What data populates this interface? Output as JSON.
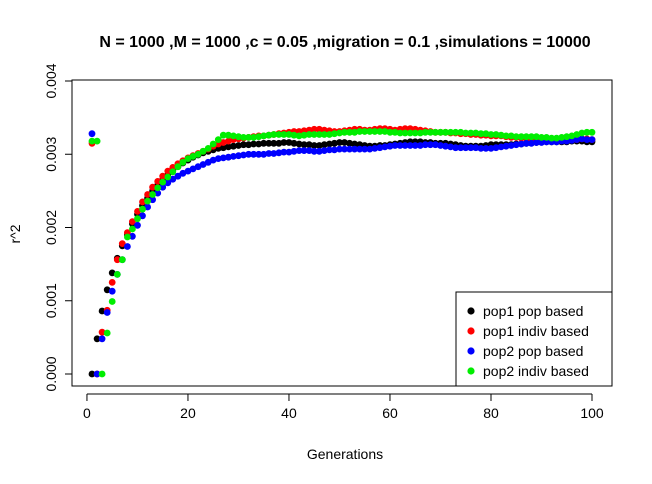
{
  "chart_data": {
    "type": "scatter",
    "title": "N = 1000 ,M = 1000 ,c = 0.05 ,migration = 0.1 ,simulations = 10000",
    "xlabel": "Generations",
    "ylabel": "r^2",
    "xlim": [
      1,
      100
    ],
    "ylim": [
      0,
      0.004
    ],
    "xticks": [
      0,
      20,
      40,
      60,
      80,
      100
    ],
    "xtick_labels": [
      "0",
      "20",
      "40",
      "60",
      "80",
      "100"
    ],
    "yticks": [
      0,
      0.001,
      0.002,
      0.003,
      0.004
    ],
    "ytick_labels": [
      "0.000",
      "0.001",
      "0.002",
      "0.003",
      "0.004"
    ],
    "grid": false,
    "legend_position": "bottom-right",
    "series": [
      {
        "name": "pop1 pop based",
        "color": "#000000",
        "x": [
          1,
          2,
          3,
          4,
          5,
          6,
          7,
          8,
          9,
          10,
          11,
          12,
          13,
          14,
          15,
          16,
          17,
          18,
          19,
          20,
          21,
          22,
          23,
          24,
          25,
          26,
          27,
          28,
          29,
          30,
          31,
          32,
          33,
          34,
          35,
          36,
          37,
          38,
          39,
          40,
          41,
          42,
          43,
          44,
          45,
          46,
          47,
          48,
          49,
          50,
          51,
          52,
          53,
          54,
          55,
          56,
          57,
          58,
          59,
          60,
          61,
          62,
          63,
          64,
          65,
          66,
          67,
          68,
          69,
          70,
          71,
          72,
          73,
          74,
          75,
          76,
          77,
          78,
          79,
          80,
          81,
          82,
          83,
          84,
          85,
          86,
          87,
          88,
          89,
          90,
          91,
          92,
          93,
          94,
          95,
          96,
          97,
          98,
          99,
          100
        ],
        "y": [
          0.0,
          0.00048,
          0.00086,
          0.00115,
          0.00138,
          0.00158,
          0.00175,
          0.0019,
          0.00205,
          0.00218,
          0.0023,
          0.0024,
          0.0025,
          0.00258,
          0.00265,
          0.00272,
          0.00278,
          0.00283,
          0.00288,
          0.00292,
          0.00296,
          0.00299,
          0.00302,
          0.00304,
          0.00306,
          0.00308,
          0.00309,
          0.0031,
          0.00311,
          0.00312,
          0.00313,
          0.00313,
          0.00314,
          0.00314,
          0.00315,
          0.00315,
          0.00315,
          0.00315,
          0.00316,
          0.00316,
          0.00315,
          0.00314,
          0.00313,
          0.00313,
          0.00312,
          0.00312,
          0.00313,
          0.00314,
          0.00315,
          0.00316,
          0.00316,
          0.00315,
          0.00314,
          0.00313,
          0.00312,
          0.00311,
          0.00311,
          0.00312,
          0.00312,
          0.00313,
          0.00314,
          0.00315,
          0.00316,
          0.00317,
          0.00317,
          0.00317,
          0.00316,
          0.00316,
          0.00315,
          0.00315,
          0.00315,
          0.00314,
          0.00313,
          0.00312,
          0.00311,
          0.00311,
          0.00311,
          0.00311,
          0.00312,
          0.00313,
          0.00313,
          0.00313,
          0.00313,
          0.00313,
          0.00314,
          0.00314,
          0.00315,
          0.00316,
          0.00316,
          0.00317,
          0.00317,
          0.00317,
          0.00317,
          0.00317,
          0.00317,
          0.00318,
          0.00318,
          0.00318,
          0.00317,
          0.00317
        ]
      },
      {
        "name": "pop1 indiv based",
        "color": "#ff0000",
        "x": [
          1,
          2,
          3,
          4,
          5,
          6,
          7,
          8,
          9,
          10,
          11,
          12,
          13,
          14,
          15,
          16,
          17,
          18,
          19,
          20,
          21,
          22,
          23,
          24,
          25,
          26,
          27,
          28,
          29,
          30,
          31,
          32,
          33,
          34,
          35,
          36,
          37,
          38,
          39,
          40,
          41,
          42,
          43,
          44,
          45,
          46,
          47,
          48,
          49,
          50,
          51,
          52,
          53,
          54,
          55,
          56,
          57,
          58,
          59,
          60,
          61,
          62,
          63,
          64,
          65,
          66,
          67,
          68,
          69,
          70,
          71,
          72,
          73,
          74,
          75,
          76,
          77,
          78,
          79,
          80,
          81,
          82,
          83,
          84,
          85,
          86,
          87,
          88,
          89,
          90,
          91,
          92,
          93,
          94,
          95,
          96,
          97,
          98,
          99,
          100
        ],
        "y": [
          0.00315,
          0.0,
          0.00057,
          0.00087,
          0.00125,
          0.00156,
          0.00178,
          0.00193,
          0.00208,
          0.00222,
          0.00235,
          0.00245,
          0.00255,
          0.00263,
          0.0027,
          0.00277,
          0.00282,
          0.00287,
          0.00291,
          0.00295,
          0.00298,
          0.00301,
          0.00304,
          0.00307,
          0.00311,
          0.00314,
          0.00316,
          0.00318,
          0.0032,
          0.00321,
          0.00322,
          0.00323,
          0.00324,
          0.00325,
          0.00325,
          0.00326,
          0.00327,
          0.00328,
          0.00329,
          0.0033,
          0.00331,
          0.00331,
          0.00332,
          0.00333,
          0.00334,
          0.00334,
          0.00333,
          0.00332,
          0.00331,
          0.00331,
          0.00332,
          0.00333,
          0.00334,
          0.00334,
          0.00333,
          0.00333,
          0.00334,
          0.00335,
          0.00335,
          0.00334,
          0.00333,
          0.00334,
          0.00335,
          0.00335,
          0.00334,
          0.00333,
          0.00332,
          0.00331,
          0.0033,
          0.0033,
          0.0033,
          0.00329,
          0.00329,
          0.00328,
          0.00328,
          0.00327,
          0.00327,
          0.00326,
          0.00326,
          0.00325,
          0.00325,
          0.00325,
          0.00324,
          0.00323,
          0.00323,
          0.00322,
          0.00322,
          0.00321,
          0.00321,
          0.0032,
          0.0032,
          0.0032,
          0.00319,
          0.00319,
          0.00319,
          0.0032,
          0.0032,
          0.00321,
          0.00321,
          0.0032
        ]
      },
      {
        "name": "pop2 pop based",
        "color": "#0000ff",
        "x": [
          1,
          2,
          3,
          4,
          5,
          6,
          7,
          8,
          9,
          10,
          11,
          12,
          13,
          14,
          15,
          16,
          17,
          18,
          19,
          20,
          21,
          22,
          23,
          24,
          25,
          26,
          27,
          28,
          29,
          30,
          31,
          32,
          33,
          34,
          35,
          36,
          37,
          38,
          39,
          40,
          41,
          42,
          43,
          44,
          45,
          46,
          47,
          48,
          49,
          50,
          51,
          52,
          53,
          54,
          55,
          56,
          57,
          58,
          59,
          60,
          61,
          62,
          63,
          64,
          65,
          66,
          67,
          68,
          69,
          70,
          71,
          72,
          73,
          74,
          75,
          76,
          77,
          78,
          79,
          80,
          81,
          82,
          83,
          84,
          85,
          86,
          87,
          88,
          89,
          90,
          91,
          92,
          93,
          94,
          95,
          96,
          97,
          98,
          99,
          100
        ],
        "y": [
          0.00328,
          0.0,
          0.00048,
          0.00084,
          0.00113,
          0.00136,
          0.00156,
          0.00174,
          0.00188,
          0.00203,
          0.00216,
          0.00228,
          0.00238,
          0.00247,
          0.00255,
          0.00261,
          0.00266,
          0.0027,
          0.00274,
          0.00277,
          0.0028,
          0.00283,
          0.00286,
          0.00289,
          0.00292,
          0.00294,
          0.00295,
          0.00296,
          0.00297,
          0.00298,
          0.00299,
          0.003,
          0.003,
          0.003,
          0.003,
          0.00301,
          0.00301,
          0.00302,
          0.00303,
          0.00303,
          0.00304,
          0.00305,
          0.00305,
          0.00305,
          0.00304,
          0.00304,
          0.00305,
          0.00306,
          0.00306,
          0.00307,
          0.00307,
          0.00307,
          0.00307,
          0.00307,
          0.00307,
          0.00307,
          0.00308,
          0.00309,
          0.0031,
          0.00311,
          0.00312,
          0.00312,
          0.00312,
          0.00312,
          0.00312,
          0.00312,
          0.00313,
          0.00313,
          0.00313,
          0.00312,
          0.00311,
          0.0031,
          0.00309,
          0.00309,
          0.00309,
          0.00309,
          0.00309,
          0.00308,
          0.00308,
          0.00308,
          0.00309,
          0.0031,
          0.00311,
          0.00312,
          0.00313,
          0.00314,
          0.00315,
          0.00315,
          0.00316,
          0.00316,
          0.00317,
          0.00317,
          0.00317,
          0.00318,
          0.00318,
          0.00319,
          0.0032,
          0.00321,
          0.0032,
          0.0032
        ]
      },
      {
        "name": "pop2 indiv based",
        "color": "#00ee00",
        "x": [
          1,
          2,
          3,
          4,
          5,
          6,
          7,
          8,
          9,
          10,
          11,
          12,
          13,
          14,
          15,
          16,
          17,
          18,
          19,
          20,
          21,
          22,
          23,
          24,
          25,
          26,
          27,
          28,
          29,
          30,
          31,
          32,
          33,
          34,
          35,
          36,
          37,
          38,
          39,
          40,
          41,
          42,
          43,
          44,
          45,
          46,
          47,
          48,
          49,
          50,
          51,
          52,
          53,
          54,
          55,
          56,
          57,
          58,
          59,
          60,
          61,
          62,
          63,
          64,
          65,
          66,
          67,
          68,
          69,
          70,
          71,
          72,
          73,
          74,
          75,
          76,
          77,
          78,
          79,
          80,
          81,
          82,
          83,
          84,
          85,
          86,
          87,
          88,
          89,
          90,
          91,
          92,
          93,
          94,
          95,
          96,
          97,
          98,
          99,
          100
        ],
        "y": [
          0.00318,
          0.00318,
          0.0,
          0.00056,
          0.00099,
          0.00136,
          0.00156,
          0.00187,
          0.00198,
          0.00212,
          0.00225,
          0.00236,
          0.00245,
          0.00254,
          0.00262,
          0.00269,
          0.00276,
          0.00283,
          0.00289,
          0.00294,
          0.00297,
          0.003,
          0.00304,
          0.00308,
          0.00314,
          0.0032,
          0.00326,
          0.00326,
          0.00325,
          0.00324,
          0.00323,
          0.00323,
          0.00323,
          0.00324,
          0.00325,
          0.00326,
          0.00327,
          0.00327,
          0.00327,
          0.00327,
          0.00326,
          0.00325,
          0.00326,
          0.00327,
          0.00327,
          0.00327,
          0.00327,
          0.00327,
          0.00328,
          0.00329,
          0.0033,
          0.0033,
          0.0033,
          0.00331,
          0.00331,
          0.00331,
          0.00331,
          0.00331,
          0.00331,
          0.0033,
          0.0033,
          0.00329,
          0.00329,
          0.00329,
          0.00329,
          0.00329,
          0.0033,
          0.0033,
          0.0033,
          0.0033,
          0.0033,
          0.0033,
          0.0033,
          0.0033,
          0.00329,
          0.00329,
          0.00329,
          0.00328,
          0.00328,
          0.00327,
          0.00327,
          0.00326,
          0.00325,
          0.00325,
          0.00324,
          0.00324,
          0.00324,
          0.00324,
          0.00324,
          0.00323,
          0.00323,
          0.00322,
          0.00322,
          0.00323,
          0.00324,
          0.00325,
          0.00327,
          0.00329,
          0.0033,
          0.0033
        ]
      }
    ]
  }
}
